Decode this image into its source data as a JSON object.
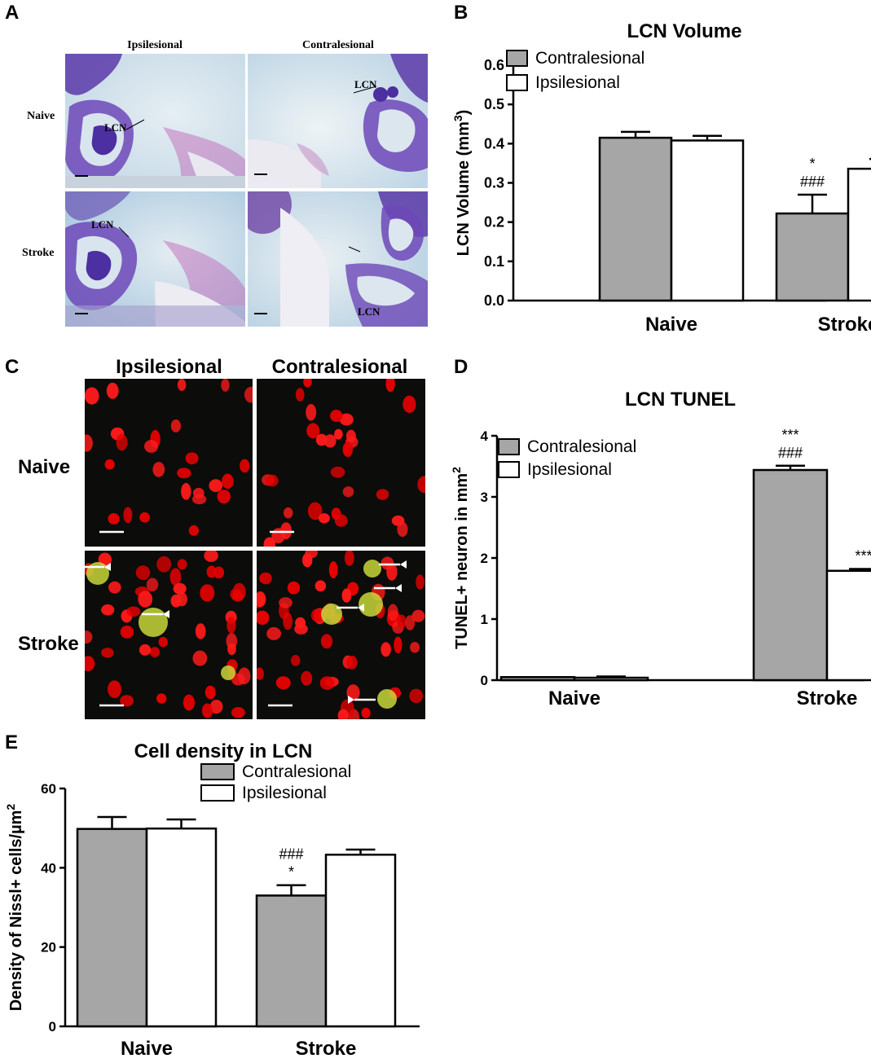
{
  "panel_letters": [
    "A",
    "B",
    "C",
    "D",
    "E"
  ],
  "histology": {
    "col_headers": [
      "Ipsilesional",
      "Contralesional"
    ],
    "row_headers": [
      "Naive",
      "Stroke"
    ],
    "structure_label": "LCN"
  },
  "fluorescence": {
    "col_headers": [
      "Ipsilesional",
      "Contralesional"
    ],
    "row_headers": [
      "Naive",
      "Stroke"
    ]
  },
  "colors": {
    "contralesional": "#a6a6a6",
    "ipsilesional": "#ffffff",
    "stroke": "#000000"
  },
  "chart_data": [
    {
      "panel": "B",
      "type": "bar",
      "title": "LCN Volume",
      "ylabel": "LCN Volume (mm³)",
      "ylabel_base": "LCN Volume (mm",
      "ylabel_sup": "3",
      "ylabel_tail": ")",
      "xlabel": "",
      "ylim": [
        0,
        0.6
      ],
      "yticks": [
        "0.0",
        "0.1",
        "0.2",
        "0.3",
        "0.4",
        "0.5",
        "0.6"
      ],
      "categories": [
        "Naive",
        "Stroke"
      ],
      "series": [
        {
          "name": "Contralesional",
          "values": [
            0.415,
            0.222
          ],
          "errors": [
            0.015,
            0.048
          ],
          "annotations": [
            "",
            "*\n###"
          ]
        },
        {
          "name": "Ipsilesional",
          "values": [
            0.408,
            0.336
          ],
          "errors": [
            0.012,
            0.025
          ],
          "annotations": [
            "",
            "#"
          ]
        }
      ],
      "legend_position": "top-left"
    },
    {
      "panel": "D",
      "type": "bar",
      "title": "LCN TUNEL",
      "ylabel": "TUNEL+ neuron in mm²",
      "ylabel_base": "TUNEL+ neuron in mm",
      "ylabel_sup": "2",
      "ylabel_tail": "",
      "xlabel": "",
      "ylim": [
        0,
        4
      ],
      "yticks": [
        "0",
        "1",
        "2",
        "3",
        "4"
      ],
      "categories": [
        "Naive",
        "Stroke"
      ],
      "series": [
        {
          "name": "Contralesional",
          "values": [
            0.05,
            3.44
          ],
          "errors": [
            0.0,
            0.07
          ],
          "annotations": [
            "",
            "***\n###"
          ]
        },
        {
          "name": "Ipsilesional",
          "values": [
            0.04,
            1.79
          ],
          "errors": [
            0.02,
            0.03
          ],
          "annotations": [
            "",
            "***"
          ]
        }
      ],
      "legend_position": "top-left"
    },
    {
      "panel": "E",
      "type": "bar",
      "title": "Cell density in LCN",
      "ylabel": "Density of Nissl+ cells/µm²",
      "ylabel_base": "Density of Nissl+ cells/µm",
      "ylabel_sup": "2",
      "ylabel_tail": "",
      "xlabel": "",
      "ylim": [
        0,
        60
      ],
      "yticks": [
        "0",
        "20",
        "40",
        "60"
      ],
      "categories": [
        "Naive",
        "Stroke"
      ],
      "series": [
        {
          "name": "Contralesional",
          "values": [
            49.8,
            33.0
          ],
          "errors": [
            3.0,
            2.6
          ],
          "annotations": [
            "",
            "###\n*"
          ]
        },
        {
          "name": "Ipsilesional",
          "values": [
            49.9,
            43.3
          ],
          "errors": [
            2.3,
            1.3
          ],
          "annotations": [
            "",
            ""
          ]
        }
      ],
      "legend_position": "top-right"
    }
  ]
}
